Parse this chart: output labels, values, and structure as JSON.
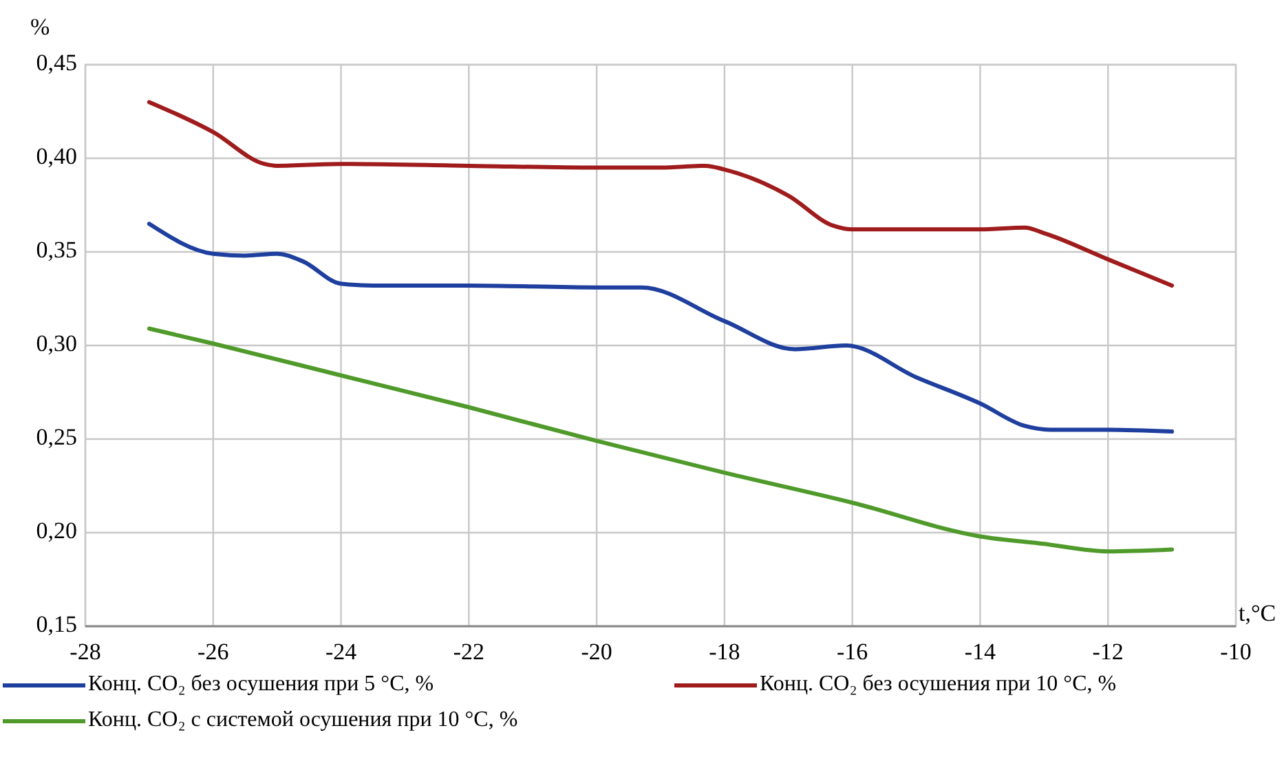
{
  "chart_data": {
    "type": "line",
    "xlabel": "t,°C",
    "ylabel": "%",
    "xlim": [
      -28,
      -10
    ],
    "xticks": [
      -28,
      -26,
      -24,
      -22,
      -20,
      -18,
      -16,
      -14,
      -12,
      -10
    ],
    "ylim": [
      0.15,
      0.45
    ],
    "yticks": [
      {
        "value": 0.15,
        "label": "0,15"
      },
      {
        "value": 0.2,
        "label": "0,20"
      },
      {
        "value": 0.25,
        "label": "0,25"
      },
      {
        "value": 0.3,
        "label": "0,30"
      },
      {
        "value": 0.35,
        "label": "0,35"
      },
      {
        "value": 0.4,
        "label": "0,40"
      },
      {
        "value": 0.45,
        "label": "0,45"
      }
    ],
    "grid": true,
    "legend": "bottom",
    "marker": "none",
    "line_style": "solid",
    "series": [
      {
        "name": "Конц. CO₂ без осушения при 5 °С, %",
        "color": "#1f3f9f",
        "x": [
          -27,
          -26,
          -25.5,
          -25,
          -24.6,
          -24,
          -23.5,
          -22,
          -20,
          -19.3,
          -18,
          -16.9,
          -16.1,
          -15,
          -14,
          -13.3,
          -12.9,
          -12,
          -11
        ],
        "values": [
          0.365,
          0.349,
          0.348,
          0.349,
          0.345,
          0.333,
          0.332,
          0.332,
          0.331,
          0.331,
          0.313,
          0.298,
          0.3,
          0.283,
          0.269,
          0.257,
          0.255,
          0.255,
          0.254
        ]
      },
      {
        "name": "Конц. CO₂ без осушения при 10 °С, %",
        "color": "#a01c1c",
        "x": [
          -27,
          -26,
          -25.2,
          -25,
          -24,
          -22,
          -20,
          -19,
          -18.3,
          -18,
          -17,
          -16.3,
          -16,
          -14,
          -13.3,
          -13,
          -12,
          -11
        ],
        "values": [
          0.43,
          0.414,
          0.397,
          0.396,
          0.397,
          0.396,
          0.395,
          0.395,
          0.396,
          0.394,
          0.38,
          0.364,
          0.362,
          0.362,
          0.363,
          0.36,
          0.346,
          0.332
        ]
      },
      {
        "name": "Конц. CO₂ с системой осушения при 10 °С, %",
        "color": "#4f9a2a",
        "x": [
          -27,
          -26,
          -24,
          -22,
          -20,
          -18,
          -16,
          -14,
          -13,
          -12,
          -11
        ],
        "values": [
          0.309,
          0.301,
          0.284,
          0.267,
          0.249,
          0.232,
          0.216,
          0.198,
          0.194,
          0.19,
          0.191
        ]
      }
    ]
  }
}
